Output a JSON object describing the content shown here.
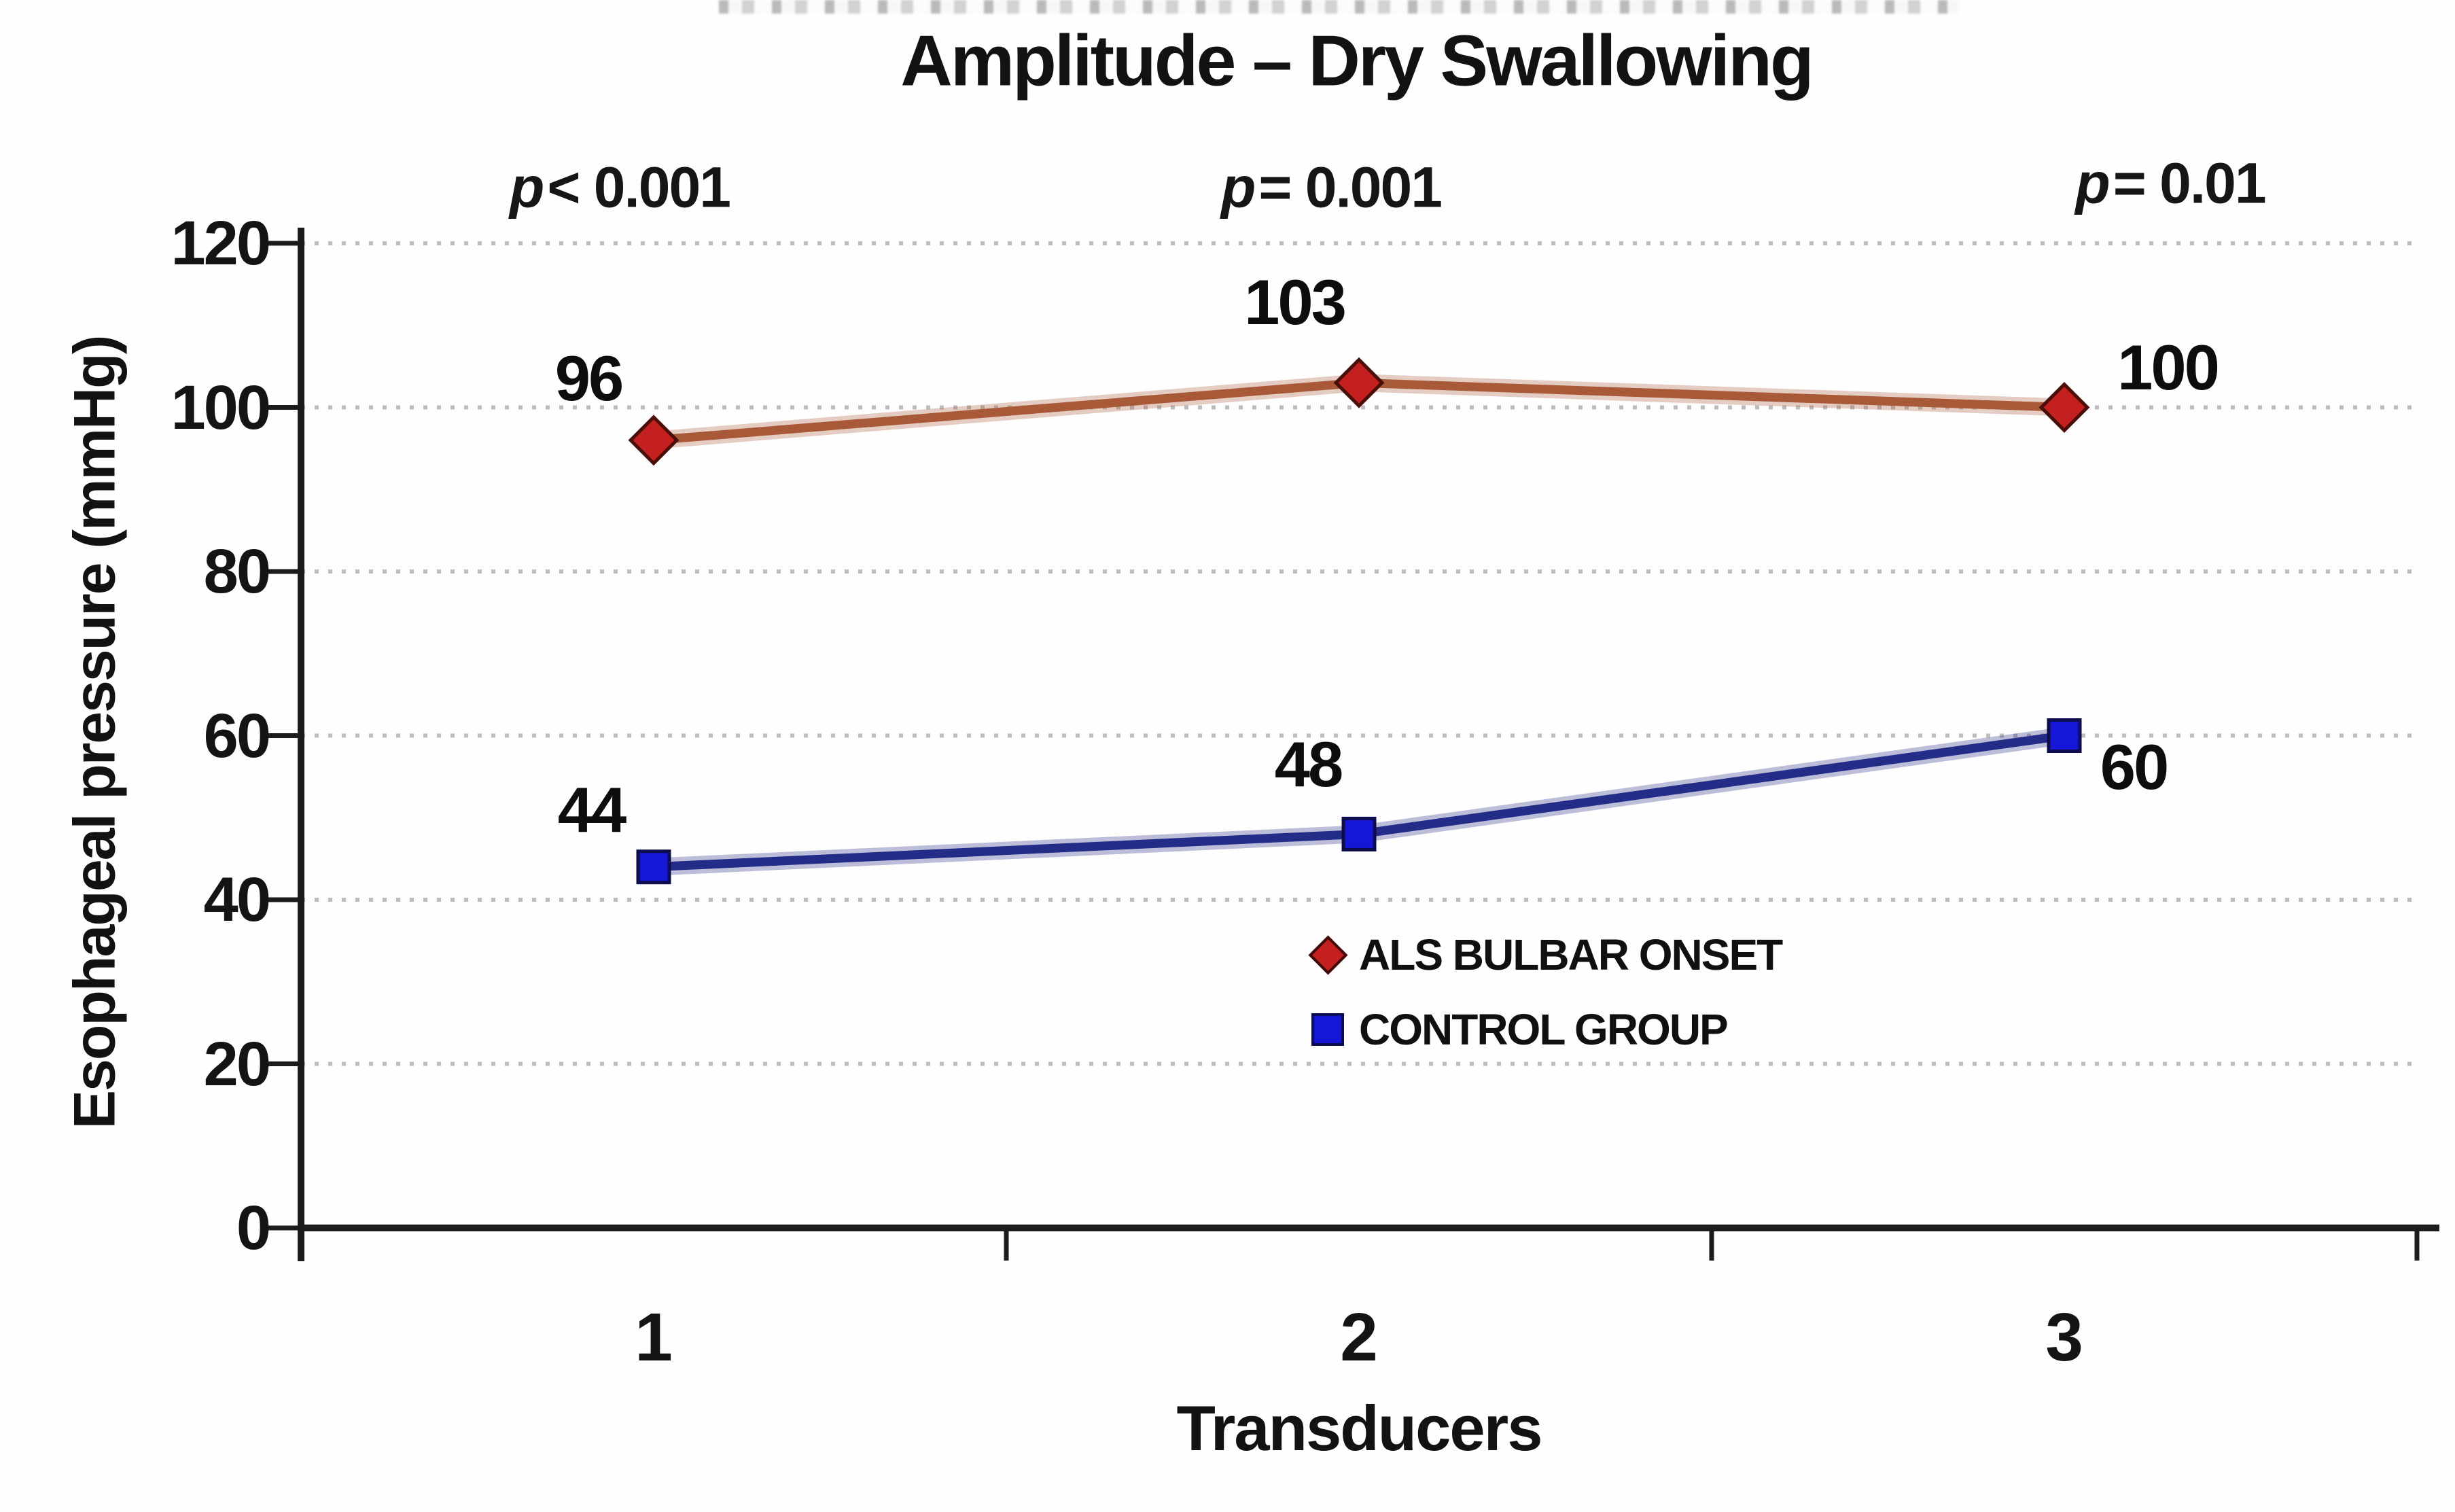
{
  "chart_data": {
    "type": "line",
    "title": "Amplitude – Dry Swallowing",
    "xlabel": "Transducers",
    "ylabel": "Esophageal pressure (mmHg)",
    "categories": [
      "1",
      "2",
      "3"
    ],
    "ylim": [
      0,
      120
    ],
    "yticks": [
      0,
      20,
      40,
      60,
      80,
      100,
      120
    ],
    "grid": "horizontal dotted light-gray",
    "legend_position": "inside lower-middle",
    "axis_color": "#1c1c1c",
    "gridline_color": "#bdbdbd",
    "p_annotations": [
      {
        "symbol": "p",
        "rest": "< 0.001"
      },
      {
        "symbol": "p",
        "rest": "= 0.001"
      },
      {
        "symbol": "p",
        "rest": "= 0.01"
      }
    ],
    "series": [
      {
        "name": "ALS BULBAR ONSET",
        "marker": "diamond",
        "marker_color": "#c3201f",
        "marker_outline": "#4a0f08",
        "line_color": "#a85a38",
        "values": [
          96,
          103,
          100
        ]
      },
      {
        "name": "CONTROL GROUP",
        "marker": "square",
        "marker_color": "#1616d6",
        "marker_outline": "#0d0d4d",
        "line_color": "#232c86",
        "values": [
          44,
          48,
          60
        ]
      }
    ]
  }
}
